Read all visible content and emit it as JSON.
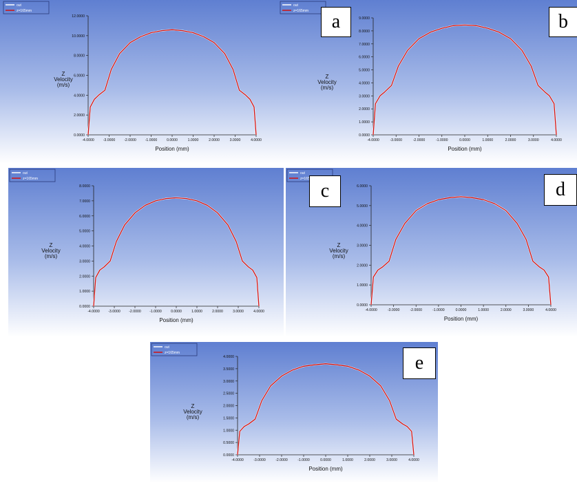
{
  "colors": {
    "bg_top": "#5f7fd1",
    "bg_bottom": "#ffffff",
    "curve": "#d01010",
    "outlet": "#ffffff",
    "axis": "#222222"
  },
  "legend": {
    "series_1": "out",
    "series_2": "z=165mm"
  },
  "chart_data": [
    {
      "type": "line",
      "panel_label": "a",
      "xlabel": "Position (mm)",
      "ylabel": [
        "Z",
        "Velocity",
        "(m/s)"
      ],
      "x_ticks": [
        "-4.0000",
        "-3.0000",
        "-2.0000",
        "-1.0000",
        "0.0000",
        "1.0000",
        "2.0000",
        "3.0000",
        "4.0000"
      ],
      "y_ticks": [
        "0.0000",
        "2.0000",
        "4.0000",
        "6.0000",
        "8.0000",
        "10.0000",
        "12.0000"
      ],
      "xlim": [
        -4,
        4
      ],
      "ylim": [
        0,
        12
      ],
      "series": [
        {
          "name": "out",
          "x": [
            -4,
            -3.9,
            -3.7,
            -3.5,
            -3.2,
            -2.9,
            -2.5,
            -2,
            -1.5,
            -1,
            -0.5,
            0,
            0.5,
            1,
            1.5,
            2,
            2.5,
            2.9,
            3.2,
            3.5,
            3.7,
            3.9,
            4
          ],
          "y": [
            0,
            2.8,
            3.6,
            4,
            4.5,
            6.6,
            8.2,
            9.3,
            9.9,
            10.3,
            10.5,
            10.6,
            10.5,
            10.3,
            9.9,
            9.3,
            8.2,
            6.6,
            4.5,
            4,
            3.6,
            2.8,
            0
          ]
        },
        {
          "name": "z=165mm",
          "x": [
            -4,
            -3.9,
            -3.7,
            -3.5,
            -3.2,
            -2.9,
            -2.5,
            -2,
            -1.5,
            -1,
            -0.5,
            0,
            0.5,
            1,
            1.5,
            2,
            2.5,
            2.9,
            3.2,
            3.5,
            3.7,
            3.9,
            4
          ],
          "y": [
            0,
            2.8,
            3.6,
            4,
            4.5,
            6.6,
            8.2,
            9.3,
            9.9,
            10.3,
            10.5,
            10.6,
            10.5,
            10.3,
            9.9,
            9.3,
            8.2,
            6.6,
            4.5,
            4,
            3.6,
            2.8,
            0
          ]
        }
      ]
    },
    {
      "type": "line",
      "panel_label": "b",
      "xlabel": "Position (mm)",
      "ylabel": [
        "Z",
        "Velocity",
        "(m/s)"
      ],
      "x_ticks": [
        "-4.0000",
        "-3.0000",
        "-2.0000",
        "-1.0000",
        "0.0000",
        "1.0000",
        "2.0000",
        "3.0000",
        "4.0000"
      ],
      "y_ticks": [
        "0.0000",
        "1.0000",
        "2.0000",
        "3.0000",
        "4.0000",
        "5.0000",
        "6.0000",
        "7.0000",
        "8.0000",
        "9.0000"
      ],
      "xlim": [
        -4,
        4
      ],
      "ylim": [
        0,
        9
      ],
      "series": [
        {
          "name": "out",
          "x": [
            -4,
            -3.9,
            -3.7,
            -3.5,
            -3.2,
            -2.9,
            -2.5,
            -2,
            -1.5,
            -1,
            -0.5,
            0,
            0.5,
            1,
            1.5,
            2,
            2.5,
            2.9,
            3.2,
            3.5,
            3.7,
            3.9,
            4
          ],
          "y": [
            0,
            2.4,
            3,
            3.3,
            3.8,
            5.3,
            6.5,
            7.4,
            7.9,
            8.2,
            8.4,
            8.45,
            8.4,
            8.2,
            7.9,
            7.4,
            6.5,
            5.3,
            3.8,
            3.3,
            3,
            2.4,
            0
          ]
        },
        {
          "name": "z=165mm",
          "x": [
            -4,
            -3.9,
            -3.7,
            -3.5,
            -3.2,
            -2.9,
            -2.5,
            -2,
            -1.5,
            -1,
            -0.5,
            0,
            0.5,
            1,
            1.5,
            2,
            2.5,
            2.9,
            3.2,
            3.5,
            3.7,
            3.9,
            4
          ],
          "y": [
            0,
            2.4,
            3,
            3.3,
            3.8,
            5.3,
            6.5,
            7.4,
            7.9,
            8.2,
            8.4,
            8.45,
            8.4,
            8.2,
            7.9,
            7.4,
            6.5,
            5.3,
            3.8,
            3.3,
            3,
            2.4,
            0
          ]
        }
      ]
    },
    {
      "type": "line",
      "panel_label": "c",
      "xlabel": "Position (mm)",
      "ylabel": [
        "Z",
        "Velocity",
        "(m/s)"
      ],
      "x_ticks": [
        "-4.0000",
        "-3.0000",
        "-2.0000",
        "-1.0000",
        "0.0000",
        "1.0000",
        "2.0000",
        "3.0000",
        "4.0000"
      ],
      "y_ticks": [
        "0.0000",
        "1.0000",
        "2.0000",
        "3.0000",
        "4.0000",
        "5.0000",
        "6.0000",
        "7.0000",
        "8.0000"
      ],
      "xlim": [
        -4,
        4
      ],
      "ylim": [
        0,
        8
      ],
      "series": [
        {
          "name": "out",
          "x": [
            -4,
            -3.9,
            -3.7,
            -3.5,
            -3.2,
            -2.9,
            -2.5,
            -2,
            -1.5,
            -1,
            -0.5,
            0,
            0.5,
            1,
            1.5,
            2,
            2.5,
            2.9,
            3.2,
            3.5,
            3.7,
            3.9,
            4
          ],
          "y": [
            0,
            1.9,
            2.4,
            2.6,
            3,
            4.3,
            5.4,
            6.2,
            6.7,
            7,
            7.15,
            7.2,
            7.15,
            7,
            6.7,
            6.2,
            5.4,
            4.3,
            3,
            2.6,
            2.4,
            1.9,
            0
          ]
        },
        {
          "name": "z=165mm",
          "x": [
            -4,
            -3.9,
            -3.7,
            -3.5,
            -3.2,
            -2.9,
            -2.5,
            -2,
            -1.5,
            -1,
            -0.5,
            0,
            0.5,
            1,
            1.5,
            2,
            2.5,
            2.9,
            3.2,
            3.5,
            3.7,
            3.9,
            4
          ],
          "y": [
            0,
            1.9,
            2.4,
            2.6,
            3,
            4.3,
            5.4,
            6.2,
            6.7,
            7,
            7.15,
            7.2,
            7.15,
            7,
            6.7,
            6.2,
            5.4,
            4.3,
            3,
            2.6,
            2.4,
            1.9,
            0
          ]
        }
      ]
    },
    {
      "type": "line",
      "panel_label": "d",
      "xlabel": "Position (mm)",
      "ylabel": [
        "Z",
        "Velocity",
        "(m/s)"
      ],
      "x_ticks": [
        "-4.0000",
        "-3.0000",
        "-2.0000",
        "-1.0000",
        "0.0000",
        "1.0000",
        "2.0000",
        "3.0000",
        "4.0000"
      ],
      "y_ticks": [
        "0.0000",
        "1.0000",
        "2.0000",
        "3.0000",
        "4.0000",
        "5.0000",
        "6.0000"
      ],
      "xlim": [
        -4,
        4
      ],
      "ylim": [
        0,
        6
      ],
      "series": [
        {
          "name": "out",
          "x": [
            -4,
            -3.9,
            -3.7,
            -3.5,
            -3.2,
            -2.9,
            -2.5,
            -2,
            -1.5,
            -1,
            -0.5,
            0,
            0.5,
            1,
            1.5,
            2,
            2.5,
            2.9,
            3.2,
            3.5,
            3.7,
            3.9,
            4
          ],
          "y": [
            0,
            1.4,
            1.75,
            1.9,
            2.2,
            3.3,
            4.1,
            4.75,
            5.1,
            5.3,
            5.4,
            5.45,
            5.4,
            5.3,
            5.1,
            4.75,
            4.1,
            3.3,
            2.2,
            1.9,
            1.75,
            1.4,
            0
          ]
        },
        {
          "name": "z=165mm",
          "x": [
            -4,
            -3.9,
            -3.7,
            -3.5,
            -3.2,
            -2.9,
            -2.5,
            -2,
            -1.5,
            -1,
            -0.5,
            0,
            0.5,
            1,
            1.5,
            2,
            2.5,
            2.9,
            3.2,
            3.5,
            3.7,
            3.9,
            4
          ],
          "y": [
            0,
            1.4,
            1.75,
            1.9,
            2.2,
            3.3,
            4.1,
            4.75,
            5.1,
            5.3,
            5.4,
            5.45,
            5.4,
            5.3,
            5.1,
            4.75,
            4.1,
            3.3,
            2.2,
            1.9,
            1.75,
            1.4,
            0
          ]
        }
      ]
    },
    {
      "type": "line",
      "panel_label": "e",
      "xlabel": "Position (mm)",
      "ylabel": [
        "Z",
        "Velocity",
        "(m/s)"
      ],
      "x_ticks": [
        "-4.0000",
        "-3.0000",
        "-2.0000",
        "-1.0000",
        "0.0000",
        "1.0000",
        "2.0000",
        "3.0000",
        "4.0000"
      ],
      "y_ticks": [
        "0.0000",
        "0.5000",
        "1.0000",
        "1.5000",
        "2.0000",
        "2.5000",
        "3.0000",
        "3.5000",
        "4.0000"
      ],
      "xlim": [
        -4,
        4
      ],
      "ylim": [
        0,
        4
      ],
      "series": [
        {
          "name": "out",
          "x": [
            -4,
            -3.9,
            -3.7,
            -3.5,
            -3.2,
            -2.9,
            -2.5,
            -2,
            -1.5,
            -1,
            -0.5,
            0,
            0.5,
            1,
            1.5,
            2,
            2.5,
            2.9,
            3.2,
            3.5,
            3.7,
            3.9,
            4
          ],
          "y": [
            0,
            0.95,
            1.15,
            1.25,
            1.45,
            2.2,
            2.8,
            3.2,
            3.45,
            3.6,
            3.66,
            3.7,
            3.66,
            3.6,
            3.45,
            3.2,
            2.8,
            2.2,
            1.45,
            1.25,
            1.15,
            0.95,
            0
          ]
        },
        {
          "name": "z=165mm",
          "x": [
            -4,
            -3.9,
            -3.7,
            -3.5,
            -3.2,
            -2.9,
            -2.5,
            -2,
            -1.5,
            -1,
            -0.5,
            0,
            0.5,
            1,
            1.5,
            2,
            2.5,
            2.9,
            3.2,
            3.5,
            3.7,
            3.9,
            4
          ],
          "y": [
            0,
            0.95,
            1.15,
            1.25,
            1.45,
            2.2,
            2.8,
            3.2,
            3.45,
            3.6,
            3.66,
            3.7,
            3.66,
            3.6,
            3.45,
            3.2,
            2.8,
            2.2,
            1.45,
            1.25,
            1.15,
            0.95,
            0
          ]
        }
      ]
    }
  ]
}
